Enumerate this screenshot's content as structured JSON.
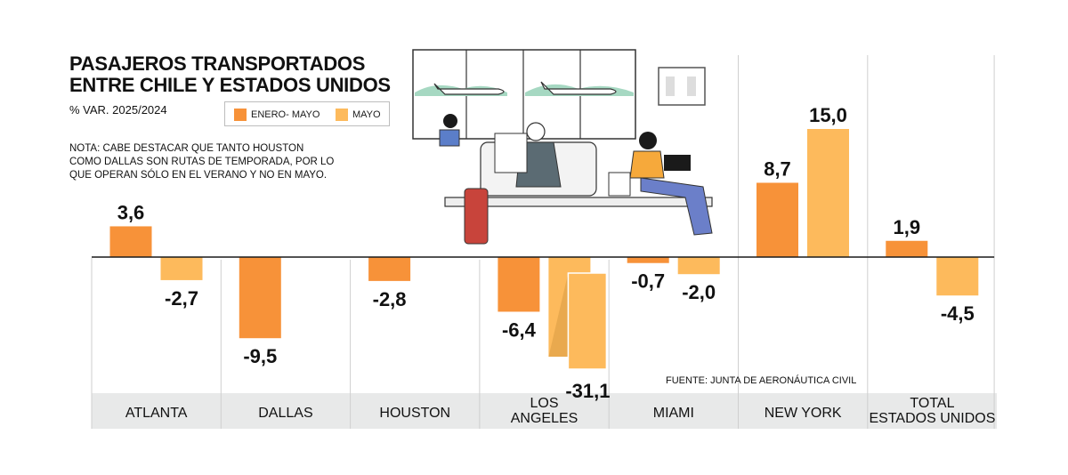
{
  "title_line1": "PASAJEROS TRANSPORTADOS",
  "title_line2": "ENTRE CHILE Y ESTADOS UNIDOS",
  "subtitle": "% VAR. 2025/2024",
  "note": "NOTA: CABE DESTACAR QUE TANTO HOUSTON COMO DALLAS SON RUTAS DE TEMPORADA, POR LO QUE OPERAN SÓLO EN EL VERANO Y NO EN MAYO.",
  "source": "FUENTE: JUNTA DE AERONÁUTICA CIVIL",
  "legend": [
    {
      "label": "ENERO- MAYO",
      "color": "#f79239"
    },
    {
      "label": "MAYO",
      "color": "#fdba5c"
    }
  ],
  "chart_data": {
    "type": "bar",
    "categories": [
      [
        "ATLANTA"
      ],
      [
        "DALLAS"
      ],
      [
        "HOUSTON"
      ],
      [
        "LOS",
        "ANGELES"
      ],
      [
        "MIAMI"
      ],
      [
        "NEW YORK"
      ],
      [
        "TOTAL",
        "ESTADOS UNIDOS"
      ]
    ],
    "series": [
      {
        "name": "ENERO- MAYO",
        "color": "#f79239",
        "values": [
          3.6,
          -9.5,
          -2.8,
          -6.4,
          -0.7,
          8.7,
          1.9
        ],
        "labels": [
          "3,6",
          "-9,5",
          "-2,8",
          "-6,4",
          "-0,7",
          "8,7",
          "1,9"
        ]
      },
      {
        "name": "MAYO",
        "color": "#fdba5c",
        "values": [
          -2.7,
          null,
          null,
          -31.1,
          -2.0,
          15.0,
          -4.5
        ],
        "labels": [
          "-2,7",
          "",
          "",
          "-31,1",
          "-2,0",
          "15,0",
          "-4,5"
        ]
      }
    ],
    "broken_bar": {
      "series": 1,
      "category": 3
    }
  }
}
